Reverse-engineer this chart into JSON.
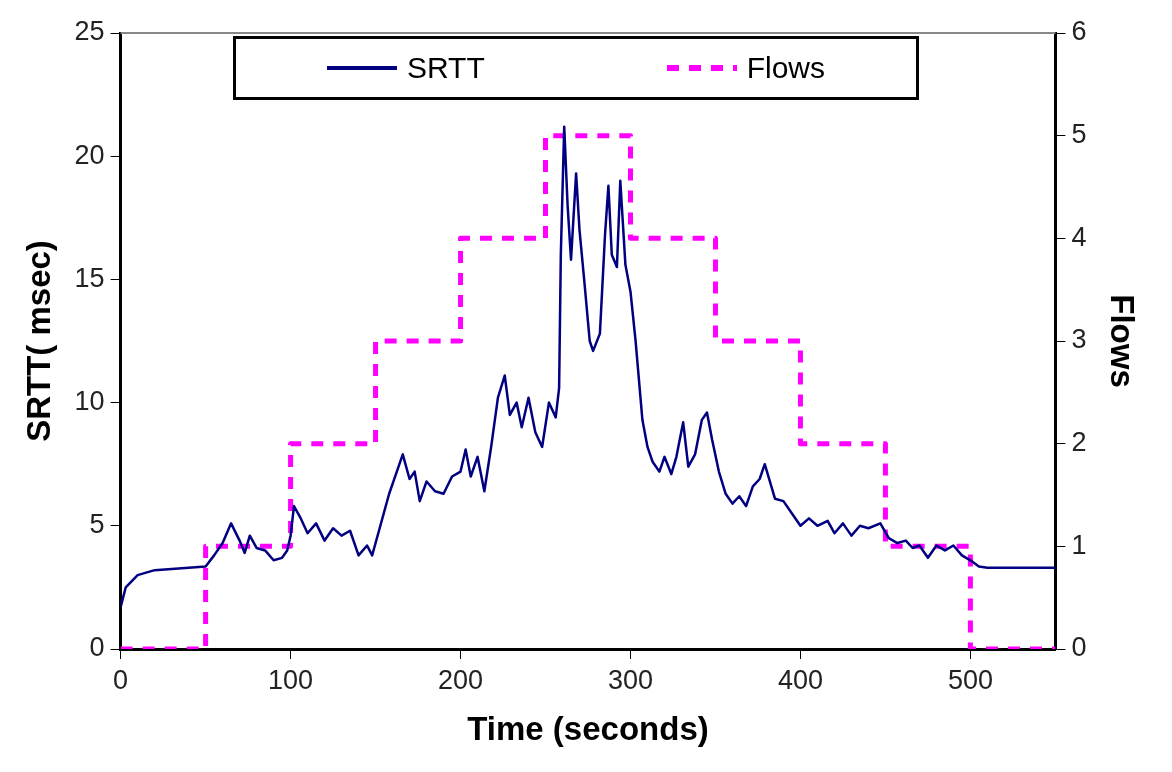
{
  "chart_data": {
    "type": "line",
    "xlabel": "Time (seconds)",
    "ylabel": "SRTT( msec)",
    "y2label": "Flows",
    "xlim": [
      0,
      550
    ],
    "xticks": [
      0,
      100,
      200,
      300,
      400,
      500
    ],
    "ylim": [
      0,
      25
    ],
    "yticks": [
      0,
      5,
      10,
      15,
      20,
      25
    ],
    "y2lim": [
      0,
      6
    ],
    "y2ticks": [
      0,
      1,
      2,
      3,
      4,
      5,
      6
    ],
    "grid": false,
    "legend": "top",
    "marker": "none",
    "series": [
      {
        "name": "SRTT",
        "type": "line",
        "color": "#000080",
        "line_style": "solid",
        "x": [
          0,
          3,
          10,
          20,
          40,
          50,
          55,
          60,
          65,
          70,
          73,
          76,
          80,
          85,
          90,
          95,
          98,
          100,
          102,
          106,
          110,
          115,
          120,
          125,
          130,
          135,
          140,
          145,
          148,
          152,
          158,
          162,
          166,
          170,
          173,
          176,
          180,
          185,
          190,
          195,
          200,
          203,
          206,
          210,
          214,
          218,
          222,
          226,
          229,
          233,
          236,
          240,
          244,
          248,
          252,
          256,
          258,
          259,
          261,
          263,
          265,
          268,
          270,
          273,
          276,
          278,
          282,
          285,
          287,
          289,
          292,
          294,
          297,
          300,
          303,
          307,
          310,
          313,
          317,
          320,
          324,
          327,
          331,
          334,
          338,
          342,
          345,
          348,
          352,
          356,
          360,
          364,
          368,
          372,
          376,
          379,
          382,
          385,
          390,
          395,
          400,
          405,
          410,
          416,
          420,
          425,
          430,
          435,
          440,
          447,
          452,
          457,
          462,
          466,
          470,
          475,
          480,
          485,
          490,
          495,
          500,
          505,
          510,
          550
        ],
        "values": [
          1.7,
          2.5,
          3.0,
          3.2,
          3.3,
          3.35,
          3.8,
          4.3,
          5.1,
          4.4,
          3.9,
          4.6,
          4.1,
          4.0,
          3.6,
          3.7,
          4.0,
          4.6,
          5.8,
          5.3,
          4.7,
          5.1,
          4.4,
          4.9,
          4.6,
          4.8,
          3.8,
          4.2,
          3.8,
          4.8,
          6.3,
          7.1,
          7.9,
          6.9,
          7.2,
          6.0,
          6.8,
          6.4,
          6.3,
          7.0,
          7.2,
          8.1,
          7.0,
          7.8,
          6.4,
          8.2,
          10.2,
          11.1,
          9.5,
          10.0,
          9.0,
          10.2,
          8.8,
          8.2,
          10.0,
          9.4,
          10.6,
          16,
          21.2,
          18,
          15.8,
          19.3,
          17.0,
          14.8,
          12.5,
          12.1,
          12.8,
          16.8,
          18.8,
          16.0,
          15.5,
          19,
          15.6,
          14.5,
          12.5,
          9.3,
          8.2,
          7.6,
          7.2,
          7.8,
          7.1,
          7.8,
          9.2,
          7.4,
          7.9,
          9.3,
          9.6,
          8.5,
          7.2,
          6.3,
          5.9,
          6.2,
          5.8,
          6.6,
          6.9,
          7.5,
          6.8,
          6.1,
          6.0,
          5.5,
          5.0,
          5.3,
          5.0,
          5.2,
          4.7,
          5.1,
          4.6,
          5.0,
          4.9,
          5.1,
          4.5,
          4.3,
          4.4,
          4.1,
          4.2,
          3.7,
          4.2,
          4.0,
          4.2,
          3.8,
          3.6,
          3.35,
          3.3,
          3.3
        ]
      },
      {
        "name": "Flows",
        "type": "step",
        "axis": "y2",
        "color": "#ff00ff",
        "line_style": "dashed",
        "x": [
          0,
          50,
          100,
          150,
          200,
          250,
          300,
          350,
          400,
          450,
          500,
          550
        ],
        "values": [
          0,
          1,
          2,
          3,
          4,
          5,
          4,
          3,
          2,
          1,
          0,
          0
        ]
      }
    ]
  }
}
